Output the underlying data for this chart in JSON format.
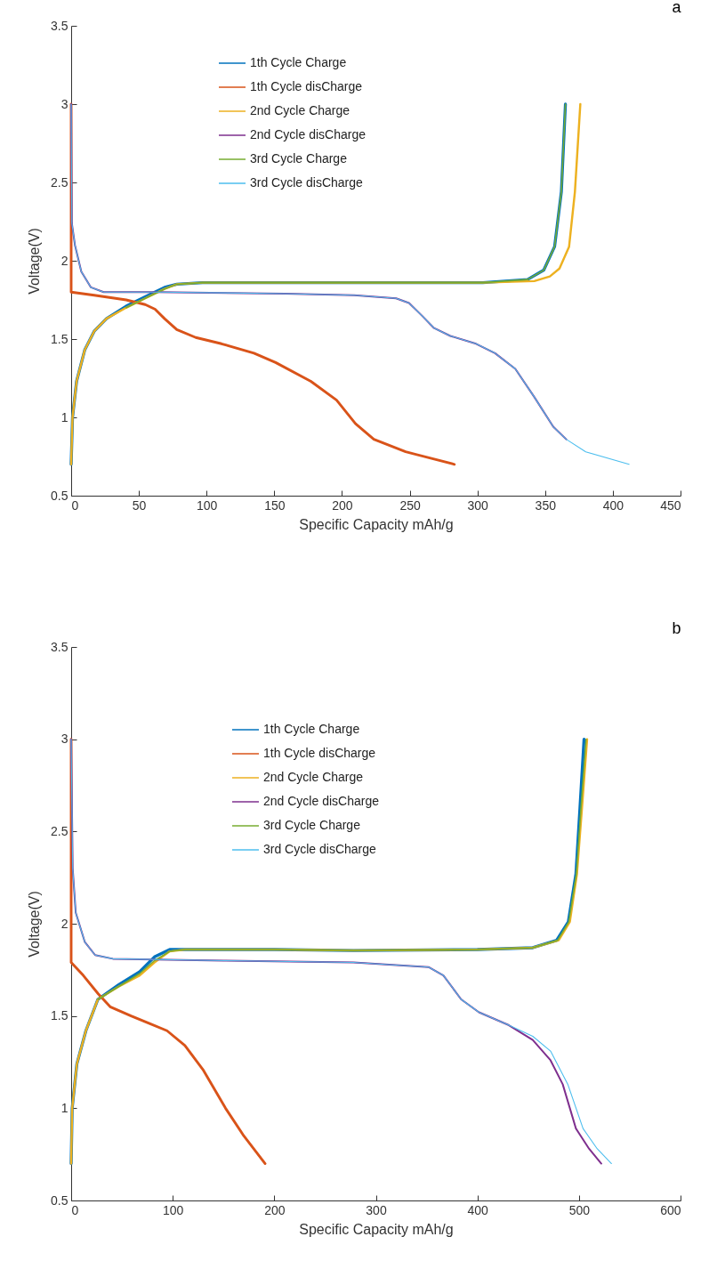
{
  "chart_data": [
    {
      "type": "line",
      "xlabel": "Specific Capacity mAh/g",
      "ylabel": "Voltage(V)",
      "annotations": [
        "a"
      ],
      "xlim": [
        0,
        450
      ],
      "ylim": [
        0.5,
        3.5
      ],
      "xticks": [
        0,
        50,
        100,
        150,
        200,
        250,
        300,
        350,
        400,
        450
      ],
      "yticks": [
        0.5,
        1,
        1.5,
        2,
        2.5,
        3,
        3.5
      ],
      "legend": "top",
      "series": [
        {
          "name": "1th Cycle Charge",
          "color": "#0072bd",
          "x": [
            0,
            1,
            4,
            10,
            17,
            26,
            40.6,
            54.7,
            69,
            78,
            97,
            150,
            209,
            250,
            304,
            337,
            349,
            357,
            362,
            365
          ],
          "values": [
            0.7,
            1.0,
            1.23,
            1.43,
            1.55,
            1.63,
            1.71,
            1.77,
            1.83,
            1.85,
            1.86,
            1.86,
            1.86,
            1.86,
            1.86,
            1.88,
            1.94,
            2.09,
            2.44,
            3.0
          ]
        },
        {
          "name": "1th Cycle disCharge",
          "color": "#d95319",
          "x": [
            0,
            0,
            17,
            40.6,
            54.7,
            62,
            69,
            78,
            92,
            111,
            135,
            151,
            177,
            196,
            210,
            223.5,
            247,
            283
          ],
          "values": [
            3.0,
            1.8,
            1.78,
            1.75,
            1.72,
            1.69,
            1.63,
            1.56,
            1.51,
            1.47,
            1.41,
            1.35,
            1.23,
            1.11,
            0.96,
            0.86,
            0.78,
            0.7
          ]
        },
        {
          "name": "2nd Cycle Charge",
          "color": "#edb120",
          "x": [
            0,
            1,
            4,
            10,
            17,
            26,
            40.6,
            54.7,
            69,
            78,
            97,
            150,
            209,
            250,
            304,
            342,
            353.5,
            360.6,
            367.7,
            372,
            376
          ],
          "values": [
            0.7,
            1.0,
            1.23,
            1.43,
            1.55,
            1.63,
            1.7,
            1.76,
            1.82,
            1.85,
            1.86,
            1.86,
            1.86,
            1.86,
            1.86,
            1.87,
            1.9,
            1.95,
            2.09,
            2.44,
            3.0
          ]
        },
        {
          "name": "2nd Cycle disCharge",
          "color": "#7e2f8e",
          "x": [
            0,
            0.5,
            2.8,
            7.5,
            14.6,
            24,
            64,
            158,
            209,
            240,
            249.5,
            259,
            268,
            280,
            299,
            313,
            328,
            342,
            356,
            365.6
          ],
          "values": [
            3.0,
            2.24,
            2.1,
            1.93,
            1.83,
            1.8,
            1.8,
            1.79,
            1.78,
            1.76,
            1.73,
            1.65,
            1.57,
            1.52,
            1.47,
            1.41,
            1.31,
            1.13,
            0.94,
            0.86
          ]
        },
        {
          "name": "3rd Cycle Charge",
          "color": "#77ac30",
          "x": [
            40.6,
            54.7,
            69,
            78,
            97,
            150,
            209,
            250,
            304,
            337,
            349,
            357,
            362,
            365
          ],
          "values": [
            1.7,
            1.76,
            1.82,
            1.85,
            1.86,
            1.86,
            1.86,
            1.86,
            1.86,
            1.88,
            1.94,
            2.09,
            2.44,
            3.0
          ]
        },
        {
          "name": "3rd Cycle disCharge",
          "color": "#4dbeee",
          "x": [
            0,
            0.5,
            2.8,
            7.5,
            14.6,
            24,
            64,
            158,
            209,
            240,
            249.5,
            259,
            268,
            280,
            299,
            313,
            328,
            342,
            356,
            365.6,
            380,
            412
          ],
          "values": [
            3.0,
            2.24,
            2.1,
            1.93,
            1.83,
            1.8,
            1.8,
            1.79,
            1.78,
            1.76,
            1.73,
            1.65,
            1.57,
            1.52,
            1.47,
            1.41,
            1.31,
            1.13,
            0.94,
            0.86,
            0.78,
            0.7
          ]
        }
      ]
    },
    {
      "type": "line",
      "xlabel": "Specific Capacity mAh/g",
      "ylabel": "Voltage(V)",
      "annotations": [
        "b"
      ],
      "xlim": [
        0,
        600
      ],
      "ylim": [
        0.5,
        3.5
      ],
      "xticks": [
        0,
        100,
        200,
        300,
        400,
        500,
        600
      ],
      "yticks": [
        0.5,
        1,
        1.5,
        2,
        2.5,
        3,
        3.5
      ],
      "legend": "top",
      "series": [
        {
          "name": "1th Cycle Charge",
          "color": "#0072bd",
          "x": [
            0,
            1,
            5.6,
            14.5,
            26.3,
            47,
            67.5,
            82,
            97,
            112,
            200,
            278,
            400,
            454.5,
            478,
            489.5,
            497,
            501,
            505
          ],
          "values": [
            0.7,
            1.0,
            1.24,
            1.42,
            1.59,
            1.67,
            1.74,
            1.82,
            1.86,
            1.86,
            1.86,
            1.855,
            1.86,
            1.87,
            1.91,
            2.01,
            2.27,
            2.63,
            3.0
          ]
        },
        {
          "name": "1th Cycle disCharge",
          "color": "#d95319",
          "x": [
            0,
            0,
            11.9,
            26.6,
            38.4,
            59,
            76.6,
            94.4,
            112,
            129.7,
            152,
            170,
            191
          ],
          "values": [
            3.0,
            1.79,
            1.72,
            1.62,
            1.55,
            1.5,
            1.46,
            1.42,
            1.34,
            1.21,
            1.0,
            0.85,
            0.7
          ]
        },
        {
          "name": "2nd Cycle Charge",
          "color": "#edb120",
          "x": [
            0,
            1,
            5.6,
            14.5,
            26.3,
            47,
            67.5,
            82,
            97,
            112,
            200,
            278,
            400,
            454.5,
            480,
            491,
            498,
            503,
            508
          ],
          "values": [
            0.7,
            1.0,
            1.24,
            1.42,
            1.59,
            1.66,
            1.72,
            1.79,
            1.85,
            1.86,
            1.86,
            1.855,
            1.86,
            1.87,
            1.91,
            2.01,
            2.27,
            2.63,
            3.0
          ]
        },
        {
          "name": "2nd Cycle disCharge",
          "color": "#7e2f8e",
          "x": [
            0,
            1.5,
            4.5,
            13.5,
            23.6,
            41,
            150,
            278,
            351.8,
            366.5,
            384,
            401.5,
            431,
            454.5,
            472,
            484,
            497,
            510,
            522
          ],
          "values": [
            3.0,
            2.3,
            2.06,
            1.9,
            1.83,
            1.81,
            1.8,
            1.79,
            1.765,
            1.72,
            1.59,
            1.52,
            1.45,
            1.37,
            1.26,
            1.13,
            0.89,
            0.78,
            0.7
          ]
        },
        {
          "name": "3rd Cycle Charge",
          "color": "#77ac30",
          "x": [
            26.3,
            47,
            67.5,
            82,
            97,
            112,
            200,
            278,
            400,
            454.5,
            479,
            490,
            497.5,
            502,
            507
          ],
          "values": [
            1.59,
            1.66,
            1.73,
            1.8,
            1.85,
            1.86,
            1.86,
            1.855,
            1.86,
            1.87,
            1.91,
            2.01,
            2.27,
            2.63,
            3.0
          ]
        },
        {
          "name": "3rd Cycle disCharge",
          "color": "#4dbeee",
          "x": [
            0,
            1.5,
            4.5,
            13.5,
            23.6,
            41,
            150,
            278,
            351.8,
            366.5,
            384,
            401.5,
            431,
            454.5,
            472,
            489,
            504,
            518,
            532
          ],
          "values": [
            3.0,
            2.3,
            2.06,
            1.9,
            1.83,
            1.81,
            1.8,
            1.79,
            1.765,
            1.72,
            1.59,
            1.52,
            1.45,
            1.39,
            1.31,
            1.13,
            0.89,
            0.78,
            0.7
          ]
        }
      ]
    }
  ]
}
